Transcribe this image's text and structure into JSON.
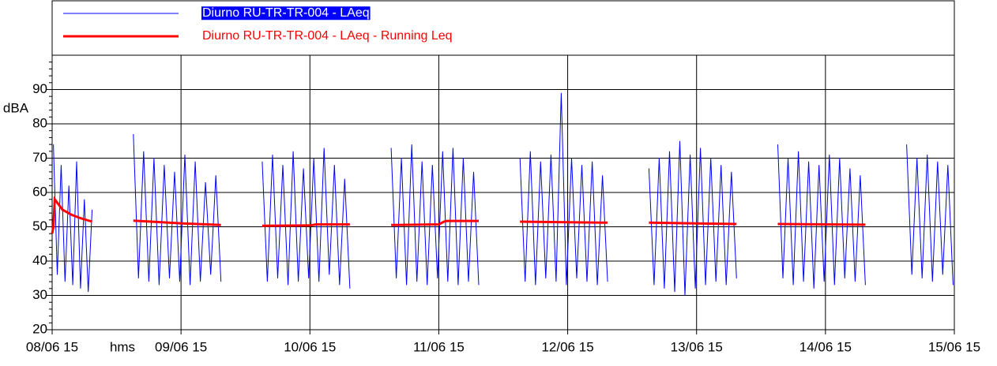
{
  "chart_data": {
    "type": "line",
    "xlabel": "hms",
    "ylabel": "dBA",
    "xlim": [
      0,
      7
    ],
    "xticks": [
      {
        "value": 0,
        "label": "08/06 15"
      },
      {
        "value": 1,
        "label": "09/06 15"
      },
      {
        "value": 2,
        "label": "10/06 15"
      },
      {
        "value": 3,
        "label": "11/06 15"
      },
      {
        "value": 4,
        "label": "12/06 15"
      },
      {
        "value": 5,
        "label": "13/06 15"
      },
      {
        "value": 6,
        "label": "14/06 15"
      },
      {
        "value": 7,
        "label": "15/06 15"
      }
    ],
    "ylim": [
      20,
      100
    ],
    "yticks": [
      20,
      30,
      40,
      50,
      60,
      70,
      80,
      90
    ],
    "yminorticks": [
      22,
      24,
      26,
      28,
      32,
      34,
      36,
      38,
      42,
      44,
      46,
      48,
      52,
      54,
      56,
      58,
      62,
      64,
      66,
      68,
      72,
      74,
      76,
      78,
      82,
      84,
      86,
      88,
      92,
      94,
      96,
      98
    ],
    "grid": true,
    "legend": "top",
    "series": [
      {
        "name": "Diurno RU-TR-TR-004 - LAeq",
        "color": "#0000ff",
        "x": [
          0.01,
          0.04,
          0.07,
          0.1,
          0.13,
          0.16,
          0.19,
          0.22,
          0.25,
          0.28,
          0.31,
          0.47,
          0.63,
          0.67,
          0.71,
          0.75,
          0.79,
          0.83,
          0.87,
          0.91,
          0.95,
          0.99,
          1.03,
          1.07,
          1.11,
          1.15,
          1.19,
          1.23,
          1.27,
          1.31,
          1.47,
          1.63,
          1.67,
          1.71,
          1.75,
          1.79,
          1.83,
          1.87,
          1.91,
          1.95,
          1.99,
          2.03,
          2.07,
          2.11,
          2.15,
          2.19,
          2.23,
          2.27,
          2.31,
          2.47,
          2.63,
          2.67,
          2.71,
          2.75,
          2.79,
          2.83,
          2.87,
          2.91,
          2.95,
          2.99,
          3.03,
          3.07,
          3.11,
          3.15,
          3.19,
          3.23,
          3.27,
          3.31,
          3.47,
          3.63,
          3.67,
          3.71,
          3.75,
          3.79,
          3.83,
          3.87,
          3.91,
          3.95,
          3.99,
          4.03,
          4.07,
          4.11,
          4.15,
          4.19,
          4.23,
          4.27,
          4.31,
          4.47,
          4.63,
          4.67,
          4.71,
          4.75,
          4.79,
          4.83,
          4.87,
          4.91,
          4.95,
          4.99,
          5.03,
          5.07,
          5.11,
          5.15,
          5.19,
          5.23,
          5.27,
          5.31,
          5.47,
          5.63,
          5.67,
          5.71,
          5.75,
          5.79,
          5.83,
          5.87,
          5.91,
          5.95,
          5.99,
          6.03,
          6.07,
          6.11,
          6.15,
          6.19,
          6.23,
          6.27,
          6.31,
          6.47,
          6.63,
          6.67,
          6.71,
          6.75,
          6.79,
          6.83,
          6.87,
          6.91,
          6.95,
          6.99
        ],
        "values": [
          74,
          36,
          68,
          34,
          62,
          33,
          69,
          32,
          58,
          31,
          55,
          null,
          77,
          35,
          72,
          34,
          70,
          33,
          68,
          35,
          66,
          34,
          71,
          33,
          69,
          34,
          63,
          36,
          65,
          34,
          null,
          69,
          34,
          71,
          35,
          68,
          33,
          72,
          34,
          67,
          35,
          70,
          34,
          73,
          36,
          68,
          33,
          64,
          32,
          null,
          73,
          35,
          70,
          33,
          74,
          34,
          69,
          33,
          68,
          35,
          72,
          34,
          73,
          33,
          70,
          34,
          66,
          33,
          null,
          70,
          34,
          72,
          33,
          69,
          35,
          71,
          34,
          89,
          33,
          70,
          35,
          68,
          34,
          69,
          33,
          65,
          34,
          null,
          67,
          33,
          70,
          32,
          72,
          31,
          75,
          30,
          71,
          32,
          73,
          33,
          70,
          34,
          68,
          33,
          66,
          35,
          null,
          74,
          35,
          70,
          33,
          72,
          34,
          69,
          32,
          68,
          34,
          71,
          33,
          70,
          35,
          67,
          34,
          65,
          33,
          null,
          74,
          36,
          70,
          35,
          71,
          34,
          69,
          36,
          68,
          33
        ]
      },
      {
        "name": "Diurno RU-TR-TR-004 - LAeq - Running Leq",
        "color": "#ff0000",
        "x": [
          0.0,
          0.01,
          0.02,
          0.04,
          0.08,
          0.15,
          0.22,
          0.31,
          0.47,
          0.63,
          1.0,
          1.31,
          1.47,
          1.63,
          2.0,
          2.05,
          2.31,
          2.47,
          2.63,
          3.0,
          3.04,
          3.06,
          3.31,
          3.47,
          3.63,
          4.0,
          4.31,
          4.47,
          4.63,
          5.31,
          5.47,
          5.63,
          6.31
        ],
        "values": [
          48,
          50,
          58,
          57,
          55,
          53.5,
          52.5,
          51.5,
          null,
          51.8,
          51,
          50.5,
          null,
          50.3,
          50.4,
          50.7,
          50.7,
          null,
          50.5,
          50.7,
          51.5,
          51.7,
          51.7,
          null,
          51.5,
          51.3,
          51.2,
          null,
          51.2,
          50.8,
          null,
          50.8,
          50.6
        ]
      }
    ]
  }
}
